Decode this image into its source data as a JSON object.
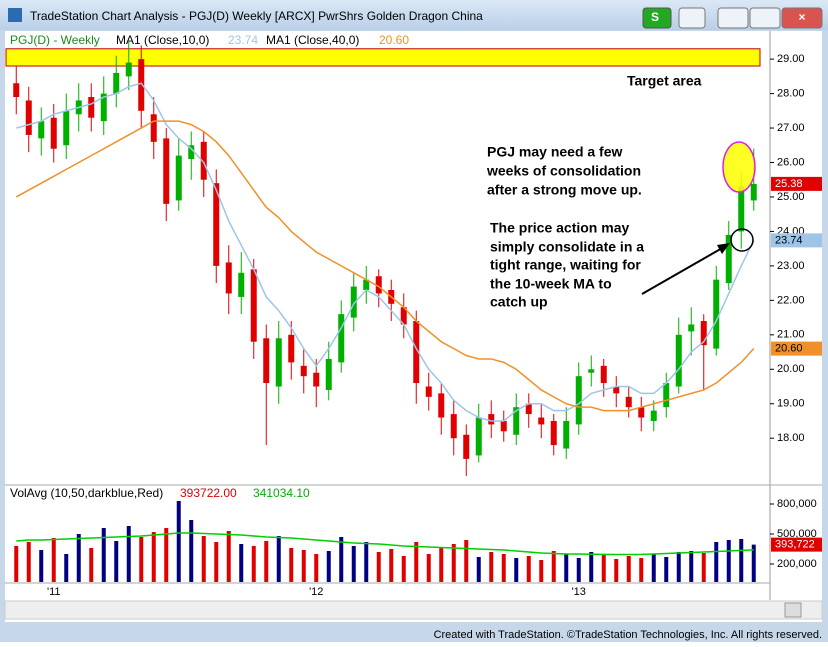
{
  "window": {
    "title": "TradeStation Chart Analysis - PGJ(D) Weekly [ARCX] PwrShrs Golden Dragon China",
    "footer": "Created with TradeStation. ©TradeStation Technologies, Inc. All rights reserved."
  },
  "chart_data": [
    {
      "type": "candlestick",
      "categories": [
        null,
        null,
        null,
        "'11",
        null,
        null,
        null,
        null,
        null,
        null,
        null,
        null,
        null,
        null,
        null,
        null,
        null,
        null,
        null,
        null,
        null,
        null,
        null,
        null,
        "'12",
        null,
        null,
        null,
        null,
        null,
        null,
        null,
        null,
        null,
        null,
        null,
        null,
        null,
        null,
        null,
        null,
        null,
        null,
        null,
        null,
        "'13",
        null,
        null,
        null,
        null,
        null,
        null,
        null,
        null,
        null,
        null,
        null,
        null,
        null,
        null
      ],
      "series": [
        {
          "name": "PGJ(D) - Weekly",
          "up_color": "#00b000",
          "down_color": "#e00000",
          "open": [
            28.3,
            27.8,
            26.7,
            27.3,
            26.5,
            27.4,
            27.9,
            27.2,
            28.0,
            28.5,
            29.0,
            27.4,
            26.7,
            24.9,
            26.1,
            26.6,
            25.4,
            23.1,
            22.1,
            22.9,
            20.9,
            19.5,
            21.0,
            20.1,
            19.9,
            19.4,
            20.2,
            21.5,
            22.3,
            22.7,
            22.3,
            21.8,
            21.4,
            19.5,
            19.3,
            18.7,
            18.1,
            17.5,
            18.7,
            18.5,
            18.1,
            19.0,
            18.6,
            18.5,
            17.7,
            18.4,
            19.9,
            20.1,
            19.5,
            19.2,
            18.9,
            18.5,
            18.9,
            19.5,
            21.1,
            21.4,
            20.6,
            22.5,
            24.0,
            24.9
          ],
          "high": [
            28.8,
            28.2,
            27.6,
            27.7,
            28.0,
            28.3,
            28.3,
            28.5,
            29.1,
            29.5,
            29.4,
            27.9,
            27.0,
            26.7,
            26.9,
            26.9,
            25.8,
            23.6,
            23.4,
            23.2,
            21.3,
            21.4,
            21.4,
            20.6,
            20.3,
            20.8,
            22.0,
            22.8,
            23.0,
            22.9,
            22.6,
            22.2,
            21.7,
            19.9,
            19.6,
            19.1,
            18.4,
            19.0,
            19.1,
            18.8,
            19.3,
            19.3,
            19.0,
            18.7,
            18.9,
            20.2,
            20.4,
            20.3,
            19.8,
            19.5,
            19.2,
            19.1,
            19.9,
            21.5,
            21.8,
            21.6,
            23.0,
            24.3,
            25.7,
            26.4
          ],
          "low": [
            27.4,
            26.3,
            26.2,
            26.0,
            26.1,
            26.9,
            26.9,
            26.8,
            27.6,
            28.1,
            27.0,
            26.1,
            24.3,
            24.6,
            25.5,
            25.0,
            22.5,
            21.6,
            21.6,
            20.3,
            17.8,
            19.0,
            19.7,
            19.3,
            18.9,
            19.1,
            19.9,
            21.1,
            21.9,
            21.8,
            21.4,
            20.9,
            19.0,
            18.8,
            18.1,
            17.5,
            16.9,
            17.3,
            18.0,
            17.9,
            17.8,
            18.3,
            18.0,
            17.5,
            17.4,
            18.1,
            19.5,
            19.2,
            18.9,
            18.6,
            18.2,
            18.2,
            18.6,
            19.3,
            20.4,
            19.4,
            20.4,
            22.3,
            23.5,
            24.6
          ],
          "close": [
            27.9,
            26.8,
            27.2,
            26.4,
            27.5,
            27.8,
            27.3,
            28.0,
            28.6,
            28.9,
            27.5,
            26.6,
            24.8,
            26.2,
            26.5,
            25.5,
            23.0,
            22.2,
            22.8,
            20.8,
            19.6,
            20.9,
            20.2,
            19.8,
            19.5,
            20.3,
            21.6,
            22.4,
            22.6,
            22.2,
            21.9,
            21.3,
            19.6,
            19.2,
            18.6,
            18.0,
            17.4,
            18.6,
            18.4,
            18.2,
            18.9,
            18.7,
            18.4,
            17.8,
            18.5,
            19.8,
            20.0,
            19.6,
            19.3,
            18.9,
            18.6,
            18.8,
            19.6,
            21.0,
            21.3,
            20.7,
            22.6,
            23.9,
            25.3,
            25.38
          ]
        },
        {
          "name": "MA1 (Close,10,0)",
          "color": "#9ec5e8",
          "values": [
            27.0,
            27.1,
            27.2,
            27.4,
            27.5,
            27.6,
            27.7,
            27.9,
            28.0,
            28.2,
            28.3,
            27.8,
            27.1,
            26.7,
            26.4,
            26.0,
            25.2,
            24.3,
            23.6,
            22.9,
            22.1,
            21.7,
            21.2,
            20.6,
            20.1,
            20.6,
            21.2,
            21.9,
            22.3,
            22.1,
            21.7,
            21.3,
            20.6,
            20.0,
            19.6,
            19.1,
            18.8,
            18.6,
            18.5,
            18.5,
            18.8,
            19.0,
            19.0,
            18.8,
            18.8,
            19.0,
            19.3,
            19.4,
            19.5,
            19.5,
            19.3,
            19.3,
            19.6,
            20.0,
            20.5,
            20.8,
            21.4,
            22.2,
            23.0,
            23.74
          ]
        },
        {
          "name": "MA1 (Close,40,0)",
          "color": "#f0902a",
          "values": [
            25.0,
            25.2,
            25.4,
            25.6,
            25.8,
            26.0,
            26.2,
            26.4,
            26.6,
            26.8,
            27.0,
            27.2,
            27.2,
            27.2,
            27.1,
            26.9,
            26.6,
            26.2,
            25.7,
            25.2,
            24.7,
            24.4,
            24.0,
            23.7,
            23.4,
            23.2,
            23.0,
            22.8,
            22.6,
            22.4,
            22.1,
            21.8,
            21.4,
            21.1,
            20.8,
            20.6,
            20.4,
            20.3,
            20.3,
            20.2,
            20.0,
            19.7,
            19.4,
            19.2,
            19.0,
            18.9,
            18.9,
            18.8,
            18.8,
            18.8,
            18.9,
            19.0,
            19.1,
            19.2,
            19.3,
            19.4,
            19.6,
            19.9,
            20.2,
            20.6
          ]
        }
      ],
      "markers": [
        {
          "value": 25.38,
          "label": "25.38",
          "color": "#e00000"
        },
        {
          "value": 23.74,
          "label": "23.74",
          "color": "#9ec5e8"
        },
        {
          "value": 20.6,
          "label": "20.60",
          "color": "#f0902a"
        }
      ],
      "ylim": [
        16.7,
        29.7
      ],
      "yticks": [
        {
          "value": 18,
          "label": "18.00"
        },
        {
          "value": 19,
          "label": "19.00"
        },
        {
          "value": 20,
          "label": "20.00"
        },
        {
          "value": 21,
          "label": "21.00"
        },
        {
          "value": 22,
          "label": "22.00"
        },
        {
          "value": 23,
          "label": "23.00"
        },
        {
          "value": 24,
          "label": "24.00"
        },
        {
          "value": 25,
          "label": "25.00"
        },
        {
          "value": 26,
          "label": "26.00"
        },
        {
          "value": 27,
          "label": "27.00"
        },
        {
          "value": 28,
          "label": "28.00"
        },
        {
          "value": 29,
          "label": "29.00"
        }
      ],
      "target_band": [
        28.8,
        29.3
      ],
      "annotations": [
        [
          "Target area"
        ],
        [
          "PGJ may need a few",
          "weeks of consolidation",
          "after a strong move up."
        ],
        [
          "The price action may",
          "simply consolidate in a",
          "tight range, waiting for",
          "the 10-week MA to",
          "catch up"
        ]
      ]
    },
    {
      "type": "bar",
      "title": "VolAvg (10,50,darkblue,Red)",
      "header_values": [
        "393722.00",
        "341034.10"
      ],
      "series": [
        {
          "name": "Volume",
          "up_color": "#000080",
          "down_color": "#e00000",
          "values": [
            380000,
            420000,
            340000,
            460000,
            300000,
            500000,
            360000,
            560000,
            430000,
            580000,
            470000,
            520000,
            560000,
            830000,
            640000,
            480000,
            420000,
            530000,
            400000,
            380000,
            430000,
            480000,
            360000,
            340000,
            300000,
            330000,
            470000,
            380000,
            420000,
            320000,
            350000,
            280000,
            420000,
            300000,
            360000,
            400000,
            440000,
            270000,
            320000,
            300000,
            260000,
            280000,
            240000,
            330000,
            300000,
            260000,
            320000,
            290000,
            250000,
            280000,
            260000,
            300000,
            270000,
            320000,
            330000,
            310000,
            420000,
            440000,
            450000,
            393722
          ]
        },
        {
          "name": "Avg",
          "color": "#00d000",
          "values": [
            430000,
            440000,
            440000,
            445000,
            450000,
            455000,
            460000,
            465000,
            470000,
            475000,
            480000,
            490000,
            500000,
            510000,
            510000,
            505000,
            500000,
            495000,
            490000,
            480000,
            470000,
            465000,
            460000,
            450000,
            440000,
            430000,
            420000,
            410000,
            405000,
            400000,
            390000,
            380000,
            375000,
            370000,
            365000,
            360000,
            355000,
            350000,
            345000,
            340000,
            330000,
            320000,
            310000,
            305000,
            300000,
            300000,
            298000,
            296000,
            295000,
            295000,
            296000,
            300000,
            305000,
            310000,
            315000,
            320000,
            325000,
            330000,
            336000,
            341034.1
          ]
        }
      ],
      "markers": [
        {
          "value": 393722,
          "label": "393,722",
          "color": "#e00000"
        }
      ],
      "ylim": [
        20000,
        970000
      ],
      "yticks": [
        {
          "value": 200000,
          "label": "200,000"
        },
        {
          "value": 500000,
          "label": "500,000"
        },
        {
          "value": 800000,
          "label": "800,000"
        }
      ]
    }
  ]
}
